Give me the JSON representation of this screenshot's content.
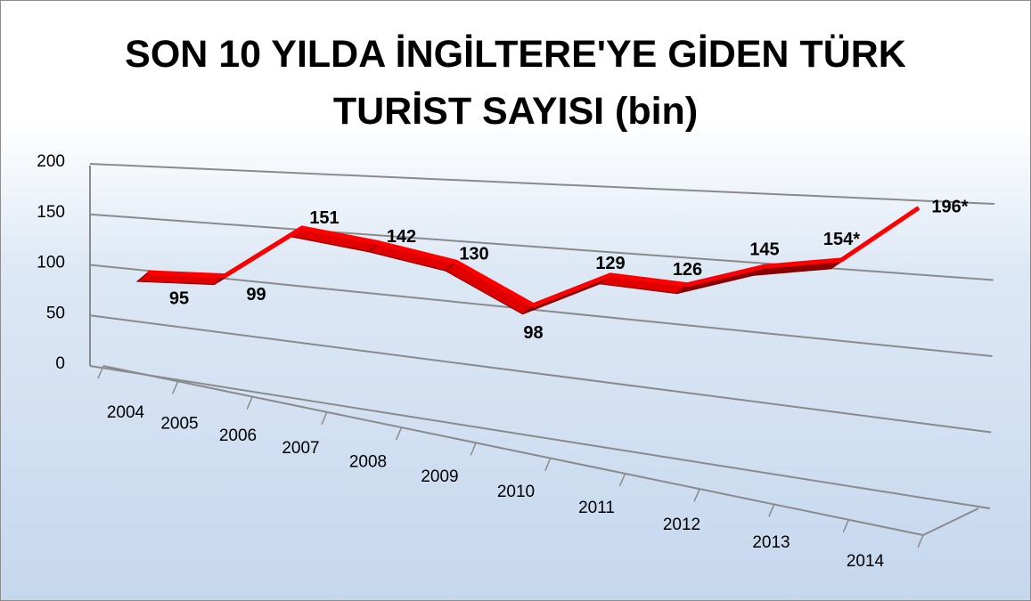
{
  "chart_data": {
    "type": "line",
    "title": "SON 10 YILDA İNGİLTERE'YE GİDEN TÜRK TURİST SAYISI (bin)",
    "categories": [
      "2004",
      "2005",
      "2006",
      "2007",
      "2008",
      "2009",
      "2010",
      "2011",
      "2012",
      "2013",
      "2014"
    ],
    "values": [
      95,
      99,
      151,
      142,
      130,
      98,
      129,
      126,
      145,
      154,
      196
    ],
    "value_labels": [
      "95",
      "99",
      "151",
      "142",
      "130",
      "98",
      "129",
      "126",
      "145",
      "154*",
      "196*"
    ],
    "color": "#ff0000",
    "ylim": [
      0,
      200
    ],
    "yticks": [
      0,
      50,
      100,
      150,
      200
    ],
    "grid": true
  }
}
